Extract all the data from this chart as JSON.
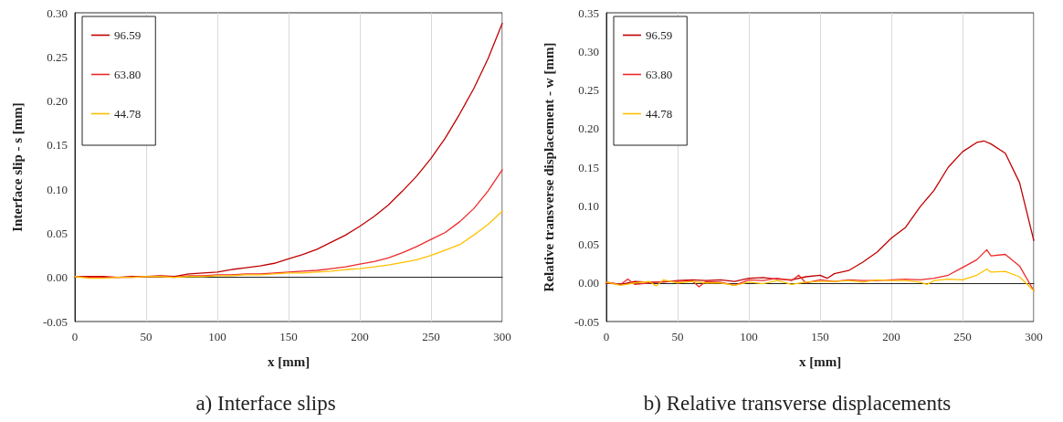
{
  "chart_data": [
    {
      "type": "line",
      "title": "a) Interface slips",
      "xlabel": "x [mm]",
      "ylabel": "Interface slip - s [mm]",
      "x": [
        0,
        10,
        20,
        30,
        40,
        50,
        60,
        70,
        80,
        90,
        100,
        110,
        120,
        130,
        140,
        150,
        160,
        170,
        180,
        190,
        200,
        210,
        220,
        230,
        240,
        250,
        260,
        270,
        280,
        290,
        300
      ],
      "series": [
        {
          "name": "96.59",
          "color": "#c00000",
          "values": [
            0.001,
            0.001,
            0.001,
            0,
            0.001,
            0.001,
            0.002,
            0.001,
            0.004,
            0.005,
            0.006,
            0.009,
            0.011,
            0.013,
            0.016,
            0.021,
            0.026,
            0.032,
            0.04,
            0.048,
            0.058,
            0.069,
            0.082,
            0.098,
            0.115,
            0.135,
            0.158,
            0.185,
            0.214,
            0.248,
            0.288
          ]
        },
        {
          "name": "63.80",
          "color": "#ee2a2a",
          "values": [
            0.001,
            0,
            0,
            0,
            0,
            0.001,
            0.001,
            0,
            0.002,
            0.002,
            0.003,
            0.003,
            0.004,
            0.004,
            0.005,
            0.006,
            0.007,
            0.008,
            0.01,
            0.012,
            0.015,
            0.018,
            0.022,
            0.028,
            0.035,
            0.043,
            0.051,
            0.063,
            0.078,
            0.098,
            0.122
          ]
        },
        {
          "name": "44.78",
          "color": "#ffc000",
          "values": [
            0.001,
            -0.001,
            -0.001,
            0,
            0,
            0.001,
            0.001,
            0,
            0.001,
            0.001,
            0.002,
            0.002,
            0.003,
            0.003,
            0.004,
            0.005,
            0.005,
            0.006,
            0.007,
            0.009,
            0.01,
            0.012,
            0.014,
            0.017,
            0.02,
            0.025,
            0.031,
            0.037,
            0.048,
            0.06,
            0.075
          ]
        }
      ],
      "xlim": [
        0,
        300
      ],
      "xticks": [
        0,
        50,
        100,
        150,
        200,
        250,
        300
      ],
      "ylim": [
        -0.05,
        0.3
      ],
      "yticks": [
        {
          "value": -0.05,
          "label": "-0.05"
        },
        {
          "value": 0,
          "label": "0.00"
        },
        {
          "value": 0.05,
          "label": "0.05"
        },
        {
          "value": 0.1,
          "label": "0.10"
        },
        {
          "value": 0.15,
          "label": "0.15"
        },
        {
          "value": 0.2,
          "label": "0.20"
        },
        {
          "value": 0.25,
          "label": "0.25"
        },
        {
          "value": 0.3,
          "label": "0.30"
        }
      ],
      "grid": "x",
      "legend": "top left",
      "marker": "none",
      "line_style": "solid"
    },
    {
      "type": "line",
      "title": "b) Relative transverse displacements",
      "xlabel": "x [mm]",
      "ylabel": "Relative transverse displacement - w [mm]",
      "series": [
        {
          "name": "96.59",
          "color": "#c00000",
          "x": [
            0,
            10,
            20,
            30,
            40,
            50,
            60,
            70,
            80,
            90,
            100,
            110,
            120,
            130,
            140,
            150,
            155,
            160,
            170,
            180,
            190,
            200,
            210,
            220,
            230,
            240,
            250,
            260,
            265,
            270,
            280,
            290,
            300
          ],
          "values": [
            0.001,
            -0.002,
            0.002,
            0.001,
            0.001,
            0.003,
            0.004,
            0.003,
            0.004,
            0.002,
            0.006,
            0.007,
            0.005,
            0.004,
            0.008,
            0.01,
            0.006,
            0.012,
            0.016,
            0.027,
            0.04,
            0.058,
            0.072,
            0.098,
            0.12,
            0.15,
            0.17,
            0.182,
            0.184,
            0.18,
            0.168,
            0.13,
            0.055
          ]
        },
        {
          "name": "63.80",
          "color": "#ee2a2a",
          "x": [
            0,
            10,
            15,
            20,
            30,
            40,
            50,
            60,
            65,
            70,
            80,
            90,
            100,
            110,
            120,
            130,
            135,
            140,
            150,
            160,
            170,
            180,
            190,
            200,
            210,
            220,
            230,
            240,
            250,
            260,
            267,
            270,
            280,
            290,
            300
          ],
          "values": [
            0,
            -0.002,
            0.005,
            -0.002,
            0,
            0.002,
            0.002,
            0.003,
            -0.005,
            0.002,
            0.001,
            -0.003,
            0.004,
            0.003,
            0.006,
            0.003,
            0.01,
            0,
            0.004,
            0.002,
            0.004,
            0.003,
            0.003,
            0.004,
            0.005,
            0.004,
            0.006,
            0.01,
            0.02,
            0.03,
            0.043,
            0.035,
            0.037,
            0.022,
            -0.01
          ]
        },
        {
          "name": "44.78",
          "color": "#ffc000",
          "x": [
            0,
            10,
            20,
            30,
            35,
            40,
            50,
            60,
            70,
            80,
            90,
            100,
            110,
            120,
            130,
            140,
            150,
            160,
            170,
            180,
            190,
            200,
            210,
            220,
            225,
            230,
            240,
            250,
            260,
            267,
            270,
            280,
            290,
            300
          ],
          "values": [
            0.001,
            -0.003,
            0,
            0.002,
            -0.004,
            0.004,
            0,
            0.002,
            0,
            0,
            -0.003,
            0.001,
            -0.001,
            0.003,
            -0.002,
            0.001,
            0.002,
            0.002,
            0.003,
            0.001,
            0.004,
            0.003,
            0.003,
            0.001,
            -0.002,
            0.003,
            0.005,
            0.004,
            0.01,
            0.018,
            0.014,
            0.015,
            0.008,
            -0.01
          ]
        }
      ],
      "xlim": [
        0,
        300
      ],
      "xticks": [
        0,
        50,
        100,
        150,
        200,
        250,
        300
      ],
      "ylim": [
        -0.05,
        0.35
      ],
      "yticks": [
        {
          "value": -0.05,
          "label": "-0.05"
        },
        {
          "value": 0,
          "label": "0.00"
        },
        {
          "value": 0.05,
          "label": "0.05"
        },
        {
          "value": 0.1,
          "label": "0.10"
        },
        {
          "value": 0.15,
          "label": "0.15"
        },
        {
          "value": 0.2,
          "label": "0.20"
        },
        {
          "value": 0.25,
          "label": "0.25"
        },
        {
          "value": 0.3,
          "label": "0.30"
        },
        {
          "value": 0.35,
          "label": "0.35"
        }
      ],
      "grid": "x",
      "legend": "top left",
      "marker": "none",
      "line_style": "solid"
    }
  ]
}
